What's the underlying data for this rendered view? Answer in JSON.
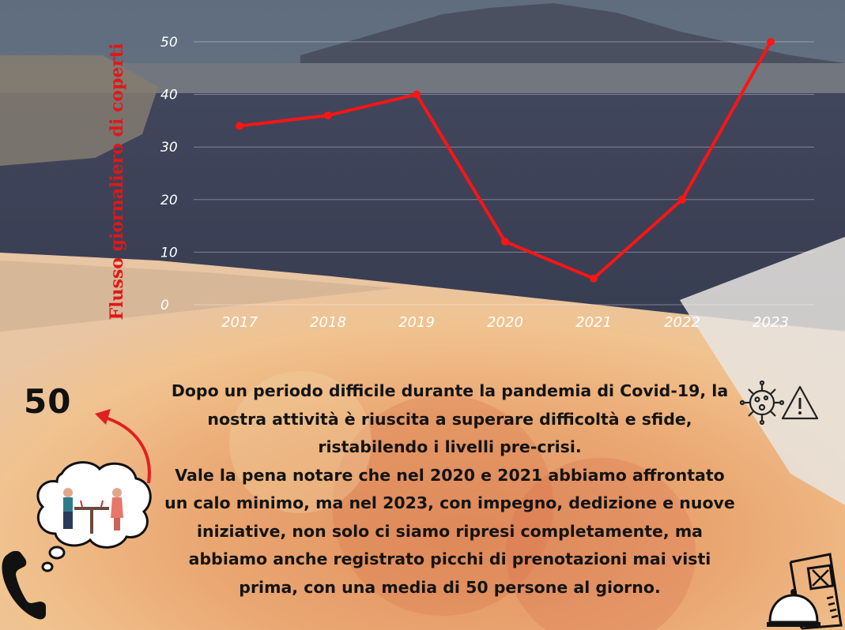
{
  "chart_data": {
    "type": "line",
    "title": "",
    "xlabel": "",
    "ylabel": "Flusso giornaliero di coperti",
    "categories": [
      "2017",
      "2018",
      "2019",
      "2020",
      "2021",
      "2022",
      "2023"
    ],
    "series": [
      {
        "values": [
          34,
          36,
          40,
          12,
          5,
          20,
          50
        ],
        "color": "#ff1414"
      }
    ],
    "yticks": [
      "0",
      "10",
      "20",
      "30",
      "40",
      "50"
    ],
    "ylim": [
      0,
      50
    ],
    "grid": true,
    "legend": "none"
  },
  "highlight": {
    "value": "50"
  },
  "story": {
    "line1": "Dopo un periodo difficile durante la pandemia di Covid-19, la nostra attività è riuscita a superare difficoltà e sfide, ristabilendo i livelli pre-crisi.",
    "line2": "Vale la pena notare che nel 2020 e 2021 abbiamo affrontato un calo minimo, ma nel 2023, con impegno, dedizione e nuove iniziative, non solo ci siamo ripresi completamente, ma abbiamo anche registrato picchi di prenotazioni mai visti prima, con una media di 50 persone al giorno."
  },
  "icons": [
    "virus-warning-icon",
    "dining-couple-icon",
    "phone-icon",
    "arrow-icon",
    "menu-cloche-icon"
  ],
  "colors": {
    "line": "#ff1414",
    "label": "#e01818",
    "text": "#141414"
  }
}
